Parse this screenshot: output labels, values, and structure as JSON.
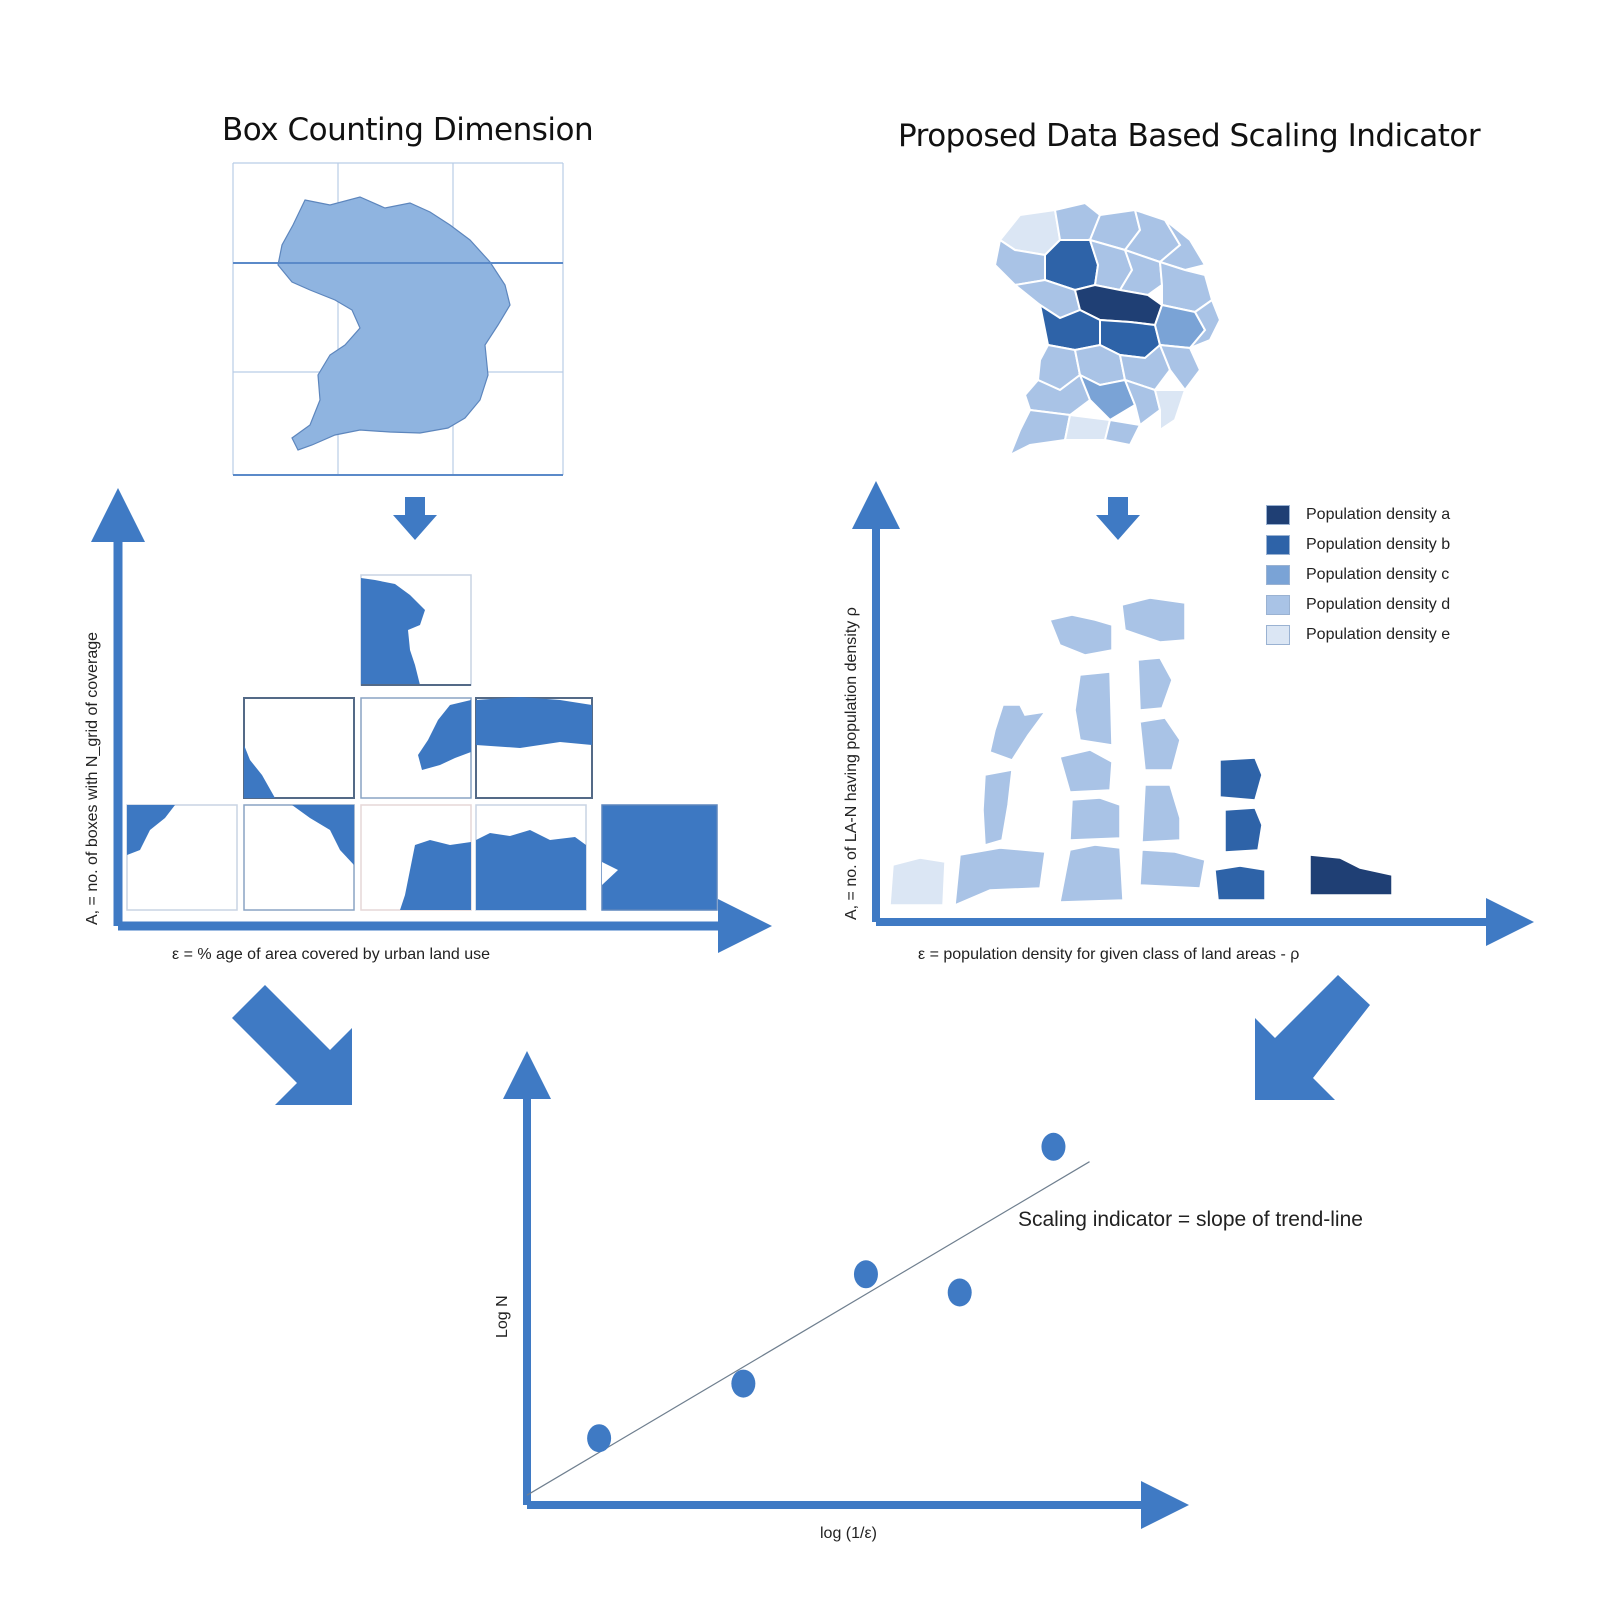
{
  "titles": {
    "left": "Box Counting Dimension",
    "right": "Proposed Data Based Scaling Indicator"
  },
  "left_chart": {
    "ylabel": "A, = no. of boxes with N_grid of coverage",
    "xlabel": "ε = % age of area covered by urban land use"
  },
  "right_chart": {
    "ylabel": "A, = no. of LA-N having population density ρ",
    "xlabel": "ε = population density for given class of land areas - ρ"
  },
  "legend": [
    {
      "label": "Population density a",
      "color": "#1f3f74"
    },
    {
      "label": "Population density b",
      "color": "#2e63a8"
    },
    {
      "label": "Population density c",
      "color": "#7aa3d6"
    },
    {
      "label": "Population density d",
      "color": "#a9c3e6"
    },
    {
      "label": "Population density e",
      "color": "#dbe6f4"
    }
  ],
  "colors": {
    "axis": "#3f7ac4",
    "arrow": "#3f7ac4",
    "map_light": "#8fb4e0",
    "box_fill": "#3d78c2",
    "point": "#3f7ac4",
    "trend": "#6f7f8f"
  },
  "scaling": {
    "ylabel": "Log N",
    "xlabel": "log (1/ε)",
    "annotation": "Scaling indicator = slope of trend-line"
  },
  "chart_data": {
    "type": "scatter",
    "xlabel": "log (1/ε)",
    "ylabel": "Log N",
    "x": [
      1,
      3,
      4.7,
      6,
      7.3
    ],
    "y": [
      1.1,
      2,
      3.8,
      3.5,
      5.9
    ],
    "trendline": true,
    "xlim": [
      0,
      8.5
    ],
    "ylim": [
      0,
      7
    ]
  }
}
